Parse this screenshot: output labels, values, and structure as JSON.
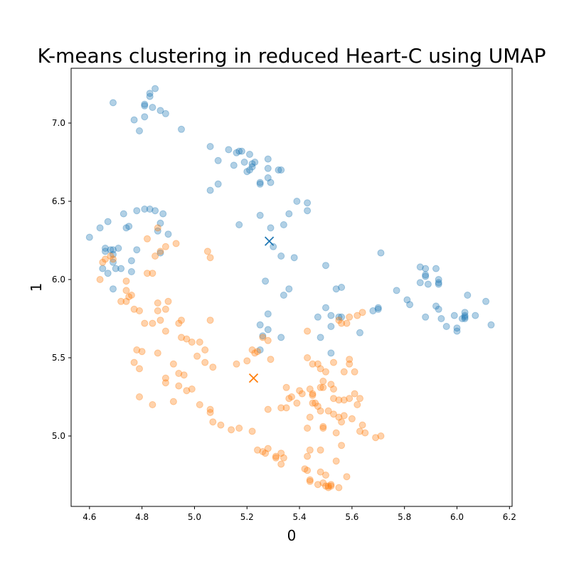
{
  "chart_data": {
    "type": "scatter",
    "title": "K-means clustering in reduced Heart-C using UMAP",
    "xlabel": "0",
    "ylabel": "1",
    "xlim": [
      4.53,
      6.21
    ],
    "ylim": [
      4.55,
      7.35
    ],
    "xticks": [
      "4.6",
      "4.8",
      "5.0",
      "5.2",
      "5.4",
      "5.6",
      "5.8",
      "6.0",
      "6.2"
    ],
    "xtick_values": [
      4.6,
      4.8,
      5.0,
      5.2,
      5.4,
      5.6,
      5.8,
      6.0,
      6.2
    ],
    "yticks": [
      "5.0",
      "5.5",
      "6.0",
      "6.5",
      "7.0"
    ],
    "ytick_values": [
      5.0,
      5.5,
      6.0,
      6.5,
      7.0
    ],
    "grid": false,
    "series": [
      {
        "color": "#1f77b4",
        "alpha": 0.35,
        "centroid": [
          5.285,
          6.245
        ],
        "points": [
          [
            4.69,
            7.13
          ],
          [
            4.85,
            7.22
          ],
          [
            4.83,
            7.19
          ],
          [
            4.83,
            7.17
          ],
          [
            4.81,
            7.12
          ],
          [
            4.81,
            7.11
          ],
          [
            4.84,
            7.1
          ],
          [
            4.87,
            7.08
          ],
          [
            4.89,
            7.06
          ],
          [
            4.77,
            7.02
          ],
          [
            4.81,
            7.04
          ],
          [
            4.79,
            6.95
          ],
          [
            4.95,
            6.96
          ],
          [
            5.06,
            6.85
          ],
          [
            5.13,
            6.83
          ],
          [
            5.17,
            6.82
          ],
          [
            5.16,
            6.81
          ],
          [
            5.18,
            6.82
          ],
          [
            5.21,
            6.8
          ],
          [
            5.28,
            6.77
          ],
          [
            5.09,
            6.76
          ],
          [
            5.19,
            6.75
          ],
          [
            5.15,
            6.73
          ],
          [
            5.22,
            6.74
          ],
          [
            5.23,
            6.75
          ],
          [
            5.22,
            6.72
          ],
          [
            5.21,
            6.7
          ],
          [
            5.2,
            6.69
          ],
          [
            5.28,
            6.71
          ],
          [
            5.32,
            6.7
          ],
          [
            5.33,
            6.7
          ],
          [
            5.28,
            6.65
          ],
          [
            5.25,
            6.62
          ],
          [
            5.29,
            6.62
          ],
          [
            5.25,
            6.61
          ],
          [
            5.09,
            6.61
          ],
          [
            5.06,
            6.57
          ],
          [
            5.39,
            6.5
          ],
          [
            5.43,
            6.49
          ],
          [
            5.43,
            6.44
          ],
          [
            5.36,
            6.42
          ],
          [
            5.25,
            6.41
          ],
          [
            5.17,
            6.35
          ],
          [
            5.29,
            6.33
          ],
          [
            5.34,
            6.35
          ],
          [
            5.3,
            6.21
          ],
          [
            5.33,
            6.15
          ],
          [
            5.38,
            6.14
          ],
          [
            5.5,
            6.09
          ],
          [
            5.71,
            6.17
          ],
          [
            4.6,
            6.27
          ],
          [
            4.64,
            6.33
          ],
          [
            4.67,
            6.37
          ],
          [
            4.73,
            6.42
          ],
          [
            4.75,
            6.34
          ],
          [
            4.74,
            6.33
          ],
          [
            4.78,
            6.44
          ],
          [
            4.81,
            6.45
          ],
          [
            4.83,
            6.45
          ],
          [
            4.85,
            6.44
          ],
          [
            4.88,
            6.42
          ],
          [
            4.87,
            6.36
          ],
          [
            4.86,
            6.31
          ],
          [
            4.9,
            6.29
          ],
          [
            4.66,
            6.2
          ],
          [
            4.66,
            6.18
          ],
          [
            4.68,
            6.19
          ],
          [
            4.69,
            6.19
          ],
          [
            4.71,
            6.2
          ],
          [
            4.69,
            6.16
          ],
          [
            4.78,
            6.19
          ],
          [
            4.87,
            6.17
          ],
          [
            4.76,
            6.12
          ],
          [
            4.65,
            6.07
          ],
          [
            4.67,
            6.04
          ],
          [
            4.69,
            6.11
          ],
          [
            4.7,
            6.07
          ],
          [
            4.72,
            6.07
          ],
          [
            4.76,
            6.05
          ],
          [
            4.69,
            5.94
          ],
          [
            5.27,
            5.99
          ],
          [
            5.34,
            5.9
          ],
          [
            5.36,
            5.94
          ],
          [
            5.28,
            5.78
          ],
          [
            5.25,
            5.71
          ],
          [
            5.26,
            5.64
          ],
          [
            5.28,
            5.68
          ],
          [
            5.33,
            5.63
          ],
          [
            5.25,
            5.55
          ],
          [
            5.54,
            5.94
          ],
          [
            5.56,
            5.95
          ],
          [
            5.5,
            5.82
          ],
          [
            5.47,
            5.76
          ],
          [
            5.52,
            5.77
          ],
          [
            5.55,
            5.76
          ],
          [
            5.56,
            5.76
          ],
          [
            5.52,
            5.7
          ],
          [
            5.48,
            5.63
          ],
          [
            5.52,
            5.53
          ],
          [
            5.63,
            5.66
          ],
          [
            5.68,
            5.8
          ],
          [
            5.7,
            5.82
          ],
          [
            5.7,
            5.81
          ],
          [
            5.77,
            5.93
          ],
          [
            5.81,
            5.87
          ],
          [
            5.82,
            5.84
          ],
          [
            5.86,
            6.08
          ],
          [
            5.88,
            6.07
          ],
          [
            5.88,
            6.03
          ],
          [
            5.88,
            6.02
          ],
          [
            5.92,
            6.07
          ],
          [
            5.86,
            5.98
          ],
          [
            5.89,
            5.97
          ],
          [
            5.93,
            6.0
          ],
          [
            5.93,
            5.97
          ],
          [
            5.93,
            5.98
          ],
          [
            5.92,
            5.83
          ],
          [
            5.93,
            5.81
          ],
          [
            5.88,
            5.76
          ],
          [
            5.94,
            5.75
          ],
          [
            5.96,
            5.7
          ],
          [
            5.99,
            5.77
          ],
          [
            6.0,
            5.69
          ],
          [
            6.0,
            5.67
          ],
          [
            6.03,
            5.79
          ],
          [
            6.03,
            5.77
          ],
          [
            6.03,
            5.75
          ],
          [
            6.03,
            5.76
          ],
          [
            6.02,
            5.75
          ],
          [
            6.04,
            5.9
          ],
          [
            6.07,
            5.77
          ],
          [
            6.11,
            5.86
          ],
          [
            6.13,
            5.71
          ]
        ]
      },
      {
        "color": "#ff7f0e",
        "alpha": 0.35,
        "centroid": [
          5.225,
          5.37
        ],
        "points": [
          [
            4.86,
            6.33
          ],
          [
            4.82,
            6.26
          ],
          [
            4.93,
            6.23
          ],
          [
            4.89,
            6.21
          ],
          [
            4.87,
            6.18
          ],
          [
            4.85,
            6.15
          ],
          [
            5.05,
            6.18
          ],
          [
            5.06,
            6.14
          ],
          [
            4.65,
            6.11
          ],
          [
            4.66,
            6.13
          ],
          [
            4.68,
            6.15
          ],
          [
            4.69,
            6.13
          ],
          [
            4.64,
            6.0
          ],
          [
            4.82,
            6.04
          ],
          [
            4.84,
            6.04
          ],
          [
            4.74,
            5.99
          ],
          [
            4.74,
            5.93
          ],
          [
            4.75,
            5.89
          ],
          [
            4.76,
            5.9
          ],
          [
            4.72,
            5.86
          ],
          [
            4.74,
            5.86
          ],
          [
            4.77,
            5.81
          ],
          [
            4.79,
            5.8
          ],
          [
            4.86,
            5.85
          ],
          [
            4.9,
            5.86
          ],
          [
            4.86,
            5.8
          ],
          [
            4.89,
            5.81
          ],
          [
            4.84,
            5.72
          ],
          [
            4.81,
            5.72
          ],
          [
            4.87,
            5.74
          ],
          [
            4.95,
            5.74
          ],
          [
            4.94,
            5.72
          ],
          [
            4.89,
            5.67
          ],
          [
            5.06,
            5.74
          ],
          [
            4.95,
            5.63
          ],
          [
            4.97,
            5.62
          ],
          [
            4.99,
            5.6
          ],
          [
            5.02,
            5.6
          ],
          [
            5.04,
            5.55
          ],
          [
            4.78,
            5.55
          ],
          [
            4.8,
            5.54
          ],
          [
            4.86,
            5.53
          ],
          [
            4.77,
            5.47
          ],
          [
            4.79,
            5.43
          ],
          [
            4.92,
            5.46
          ],
          [
            4.89,
            5.37
          ],
          [
            4.89,
            5.34
          ],
          [
            4.94,
            5.4
          ],
          [
            4.96,
            5.39
          ],
          [
            5.01,
            5.51
          ],
          [
            5.04,
            5.47
          ],
          [
            5.07,
            5.44
          ],
          [
            5.16,
            5.46
          ],
          [
            4.94,
            5.32
          ],
          [
            4.97,
            5.29
          ],
          [
            4.99,
            5.3
          ],
          [
            4.79,
            5.25
          ],
          [
            4.84,
            5.2
          ],
          [
            4.92,
            5.22
          ],
          [
            5.02,
            5.2
          ],
          [
            5.06,
            5.17
          ],
          [
            5.06,
            5.15
          ],
          [
            5.07,
            5.09
          ],
          [
            5.1,
            5.07
          ],
          [
            5.14,
            5.04
          ],
          [
            5.17,
            5.05
          ],
          [
            5.22,
            5.03
          ],
          [
            5.22,
            5.55
          ],
          [
            5.23,
            5.53
          ],
          [
            5.24,
            5.54
          ],
          [
            5.26,
            5.63
          ],
          [
            5.28,
            5.61
          ],
          [
            5.2,
            5.48
          ],
          [
            5.29,
            5.49
          ],
          [
            5.43,
            5.67
          ],
          [
            5.58,
            5.72
          ],
          [
            5.59,
            5.76
          ],
          [
            5.55,
            5.74
          ],
          [
            5.56,
            5.72
          ],
          [
            5.62,
            5.77
          ],
          [
            5.64,
            5.79
          ],
          [
            5.43,
            5.5
          ],
          [
            5.45,
            5.46
          ],
          [
            5.47,
            5.46
          ],
          [
            5.48,
            5.43
          ],
          [
            5.5,
            5.41
          ],
          [
            5.53,
            5.47
          ],
          [
            5.57,
            5.41
          ],
          [
            5.59,
            5.46
          ],
          [
            5.59,
            5.49
          ],
          [
            5.61,
            5.41
          ],
          [
            5.52,
            5.33
          ],
          [
            5.53,
            5.3
          ],
          [
            5.48,
            5.31
          ],
          [
            5.49,
            5.31
          ],
          [
            5.49,
            5.35
          ],
          [
            5.35,
            5.31
          ],
          [
            5.37,
            5.25
          ],
          [
            5.36,
            5.24
          ],
          [
            5.4,
            5.29
          ],
          [
            5.41,
            5.27
          ],
          [
            5.39,
            5.21
          ],
          [
            5.44,
            5.3
          ],
          [
            5.45,
            5.26
          ],
          [
            5.45,
            5.27
          ],
          [
            5.45,
            5.21
          ],
          [
            5.46,
            5.21
          ],
          [
            5.47,
            5.19
          ],
          [
            5.48,
            5.16
          ],
          [
            5.51,
            5.16
          ],
          [
            5.53,
            5.24
          ],
          [
            5.55,
            5.23
          ],
          [
            5.57,
            5.23
          ],
          [
            5.59,
            5.24
          ],
          [
            5.61,
            5.27
          ],
          [
            5.63,
            5.24
          ],
          [
            5.62,
            5.2
          ],
          [
            5.33,
            5.18
          ],
          [
            5.35,
            5.18
          ],
          [
            5.28,
            5.17
          ],
          [
            5.44,
            5.12
          ],
          [
            5.53,
            5.14
          ],
          [
            5.55,
            5.12
          ],
          [
            5.57,
            5.13
          ],
          [
            5.6,
            5.11
          ],
          [
            5.56,
            5.09
          ],
          [
            5.49,
            5.06
          ],
          [
            5.49,
            5.05
          ],
          [
            5.43,
            5.05
          ],
          [
            5.54,
            5.02
          ],
          [
            5.63,
            5.03
          ],
          [
            5.64,
            5.07
          ],
          [
            5.65,
            5.02
          ],
          [
            5.69,
            4.99
          ],
          [
            5.71,
            5.0
          ],
          [
            5.24,
            4.91
          ],
          [
            5.26,
            4.9
          ],
          [
            5.28,
            4.92
          ],
          [
            5.27,
            4.89
          ],
          [
            5.31,
            4.87
          ],
          [
            5.31,
            4.86
          ],
          [
            5.33,
            4.89
          ],
          [
            5.33,
            4.82
          ],
          [
            5.34,
            4.86
          ],
          [
            5.43,
            4.87
          ],
          [
            5.44,
            4.91
          ],
          [
            5.48,
            4.91
          ],
          [
            5.56,
            4.94
          ],
          [
            5.54,
            4.84
          ],
          [
            5.42,
            4.79
          ],
          [
            5.43,
            4.78
          ],
          [
            5.44,
            4.72
          ],
          [
            5.44,
            4.71
          ],
          [
            5.48,
            4.77
          ],
          [
            5.5,
            4.75
          ],
          [
            5.51,
            4.68
          ],
          [
            5.51,
            4.67
          ],
          [
            5.52,
            4.69
          ],
          [
            5.52,
            4.68
          ],
          [
            5.5,
            4.68
          ],
          [
            5.47,
            4.69
          ],
          [
            5.49,
            4.7
          ],
          [
            5.55,
            4.67
          ],
          [
            5.58,
            4.74
          ]
        ]
      }
    ]
  }
}
